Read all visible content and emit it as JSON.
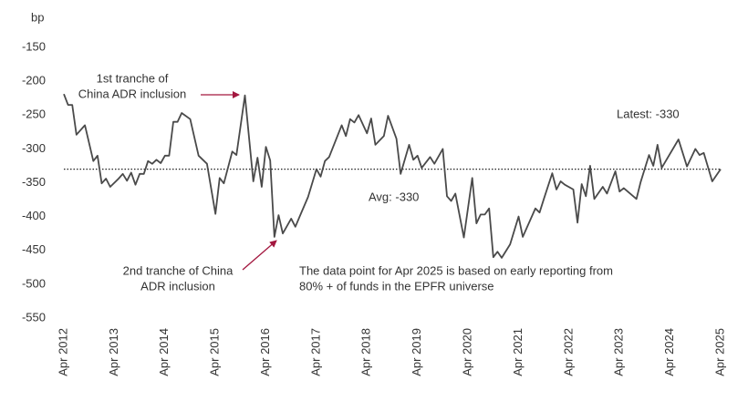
{
  "chart_data": {
    "type": "line",
    "y_label": "bp",
    "x": [
      "2012-04",
      "2012-05",
      "2012-06",
      "2012-07",
      "2012-09",
      "2012-11",
      "2012-12",
      "2013-01",
      "2013-02",
      "2013-03",
      "2013-05",
      "2013-06",
      "2013-07",
      "2013-08",
      "2013-09",
      "2013-10",
      "2013-11",
      "2013-12",
      "2014-01",
      "2014-02",
      "2014-03",
      "2014-04",
      "2014-05",
      "2014-06",
      "2014-07",
      "2014-08",
      "2014-10",
      "2014-12",
      "2015-02",
      "2015-04",
      "2015-05",
      "2015-06",
      "2015-08",
      "2015-09",
      "2015-11",
      "2016-01",
      "2016-02",
      "2016-03",
      "2016-04",
      "2016-05",
      "2016-06",
      "2016-07",
      "2016-08",
      "2016-10",
      "2016-11",
      "2016-12",
      "2017-02",
      "2017-04",
      "2017-05",
      "2017-06",
      "2017-07",
      "2017-10",
      "2017-11",
      "2017-12",
      "2018-01",
      "2018-02",
      "2018-04",
      "2018-05",
      "2018-06",
      "2018-08",
      "2018-09",
      "2018-11",
      "2018-12",
      "2019-02",
      "2019-03",
      "2019-04",
      "2019-05",
      "2019-07",
      "2019-08",
      "2019-10",
      "2019-11",
      "2019-12",
      "2020-01",
      "2020-03",
      "2020-05",
      "2020-06",
      "2020-07",
      "2020-08",
      "2020-09",
      "2020-10",
      "2020-11",
      "2020-12",
      "2021-02",
      "2021-04",
      "2021-05",
      "2021-08",
      "2021-09",
      "2021-10",
      "2021-12",
      "2022-01",
      "2022-02",
      "2022-03",
      "2022-05",
      "2022-06",
      "2022-07",
      "2022-08",
      "2022-09",
      "2022-10",
      "2022-12",
      "2023-01",
      "2023-03",
      "2023-04",
      "2023-05",
      "2023-08",
      "2023-09",
      "2023-11",
      "2023-12",
      "2024-01",
      "2024-02",
      "2024-06",
      "2024-08",
      "2024-10",
      "2024-11",
      "2024-12",
      "2025-02",
      "2025-04"
    ],
    "series": [
      {
        "color": "#4a4a4a",
        "values": [
          -219,
          -235,
          -235,
          -279,
          -265,
          -318,
          -310,
          -351,
          -344,
          -356,
          -344,
          -337,
          -347,
          -335,
          -353,
          -337,
          -337,
          -318,
          -322,
          -316,
          -321,
          -310,
          -310,
          -260,
          -260,
          -247,
          -256,
          -310,
          -322,
          -396,
          -343,
          -351,
          -304,
          -309,
          -221,
          -348,
          -313,
          -356,
          -297,
          -317,
          -430,
          -398,
          -425,
          -403,
          -415,
          -400,
          -371,
          -330,
          -341,
          -318,
          -312,
          -265,
          -281,
          -256,
          -261,
          -250,
          -277,
          -255,
          -294,
          -281,
          -251,
          -285,
          -337,
          -294,
          -316,
          -310,
          -328,
          -312,
          -322,
          -300,
          -370,
          -377,
          -366,
          -431,
          -343,
          -410,
          -397,
          -397,
          -388,
          -460,
          -452,
          -461,
          -441,
          -400,
          -430,
          -388,
          -394,
          -374,
          -336,
          -360,
          -348,
          -353,
          -360,
          -409,
          -352,
          -370,
          -325,
          -374,
          -356,
          -366,
          -333,
          -363,
          -358,
          -374,
          -349,
          -309,
          -325,
          -294,
          -328,
          -286,
          -326,
          -300,
          -309,
          -306,
          -348,
          -330
        ]
      }
    ],
    "average": {
      "value": -330,
      "label": "Avg: -330",
      "color": "#222222"
    },
    "xlim": [
      "2012-04",
      "2025-04"
    ],
    "xticks": [
      {
        "value": "2012-04",
        "label": "Apr 2012"
      },
      {
        "value": "2013-04",
        "label": "Apr 2013"
      },
      {
        "value": "2014-04",
        "label": "Apr 2014"
      },
      {
        "value": "2015-04",
        "label": "Apr 2015"
      },
      {
        "value": "2016-04",
        "label": "Apr 2016"
      },
      {
        "value": "2017-04",
        "label": "Apr 2017"
      },
      {
        "value": "2018-04",
        "label": "Apr 2018"
      },
      {
        "value": "2019-04",
        "label": "Apr 2019"
      },
      {
        "value": "2020-04",
        "label": "Apr 2020"
      },
      {
        "value": "2021-04",
        "label": "Apr 2021"
      },
      {
        "value": "2022-04",
        "label": "Apr 2022"
      },
      {
        "value": "2023-04",
        "label": "Apr 2023"
      },
      {
        "value": "2024-04",
        "label": "Apr 2024"
      },
      {
        "value": "2025-04",
        "label": "Apr 2025"
      }
    ],
    "ylim": [
      -550,
      -150
    ],
    "yticks": [
      -150,
      -200,
      -250,
      -300,
      -350,
      -400,
      -450,
      -500,
      -550
    ],
    "annotations": {
      "first_tranche": [
        "1st tranche of",
        "China ADR inclusion"
      ],
      "second_tranche": [
        "2nd tranche of China",
        "ADR inclusion"
      ],
      "latest": "Latest: -330",
      "note": [
        "The data point for Apr 2025 is based on early reporting from",
        "80% + of funds in the EPFR universe"
      ],
      "arrow_color": "#a3173f"
    }
  }
}
